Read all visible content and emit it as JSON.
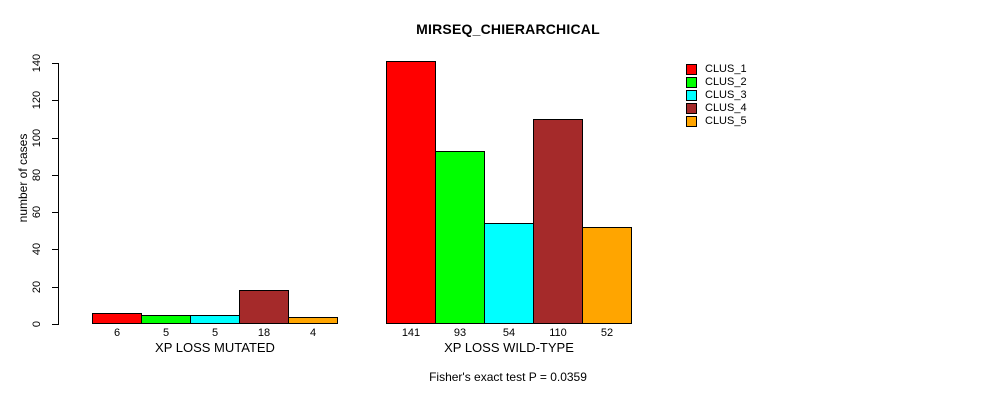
{
  "figure": {
    "title": "MIRSEQ_CHIERARCHICAL",
    "ylabel": "number of cases",
    "caption": "Fisher's exact test P = 0.0359"
  },
  "chart_data": {
    "type": "bar",
    "title": "MIRSEQ_CHIERARCHICAL",
    "xlabel": "",
    "ylabel": "number of cases",
    "ylim": [
      0,
      140
    ],
    "yticks": [
      0,
      20,
      40,
      60,
      80,
      100,
      120,
      140
    ],
    "grid": false,
    "legend_position": "right",
    "bar_outline_color": "#000000",
    "categories": [
      "XP LOSS MUTATED",
      "XP LOSS WILD-TYPE"
    ],
    "series": [
      {
        "name": "CLUS_1",
        "color": "#FF0000",
        "values": [
          6,
          141
        ]
      },
      {
        "name": "CLUS_2",
        "color": "#00FF00",
        "values": [
          5,
          93
        ]
      },
      {
        "name": "CLUS_3",
        "color": "#00FFFF",
        "values": [
          5,
          54
        ]
      },
      {
        "name": "CLUS_4",
        "color": "#A52A2A",
        "values": [
          18,
          110
        ]
      },
      {
        "name": "CLUS_5",
        "color": "#FFA500",
        "values": [
          4,
          52
        ]
      }
    ],
    "bar_value_labels_shown": true,
    "annotation": "Fisher's exact test P = 0.0359"
  }
}
